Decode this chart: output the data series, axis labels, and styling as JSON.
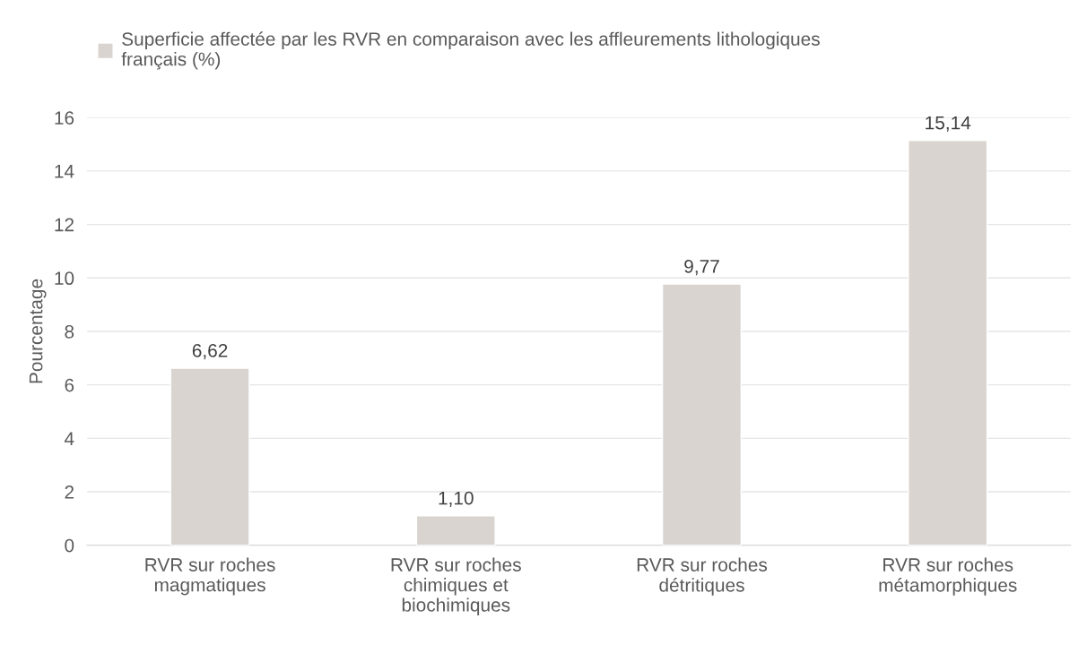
{
  "chart_data": {
    "type": "bar",
    "ylabel": "Pourcentage",
    "categories": [
      "RVR sur roches\nmagmatiques",
      "RVR sur roches\nchimiques et\nbiochimiques",
      "RVR sur roches\ndétritiques",
      "RVR sur roches\nmétamorphiques"
    ],
    "series": [
      {
        "name": "Superficie affectée par les RVR en comparaison avec les affleurements lithologiques\nfrançais (%)",
        "color": "#d9d4cf",
        "values": [
          6.62,
          1.1,
          9.77,
          15.14
        ],
        "value_labels": [
          "6,62",
          "1,10",
          "9,77",
          "15,14"
        ]
      }
    ],
    "ylim": [
      0,
      16
    ],
    "yticks": [
      0,
      2,
      4,
      6,
      8,
      10,
      12,
      14,
      16
    ],
    "grid": "y",
    "legend": "top left"
  }
}
